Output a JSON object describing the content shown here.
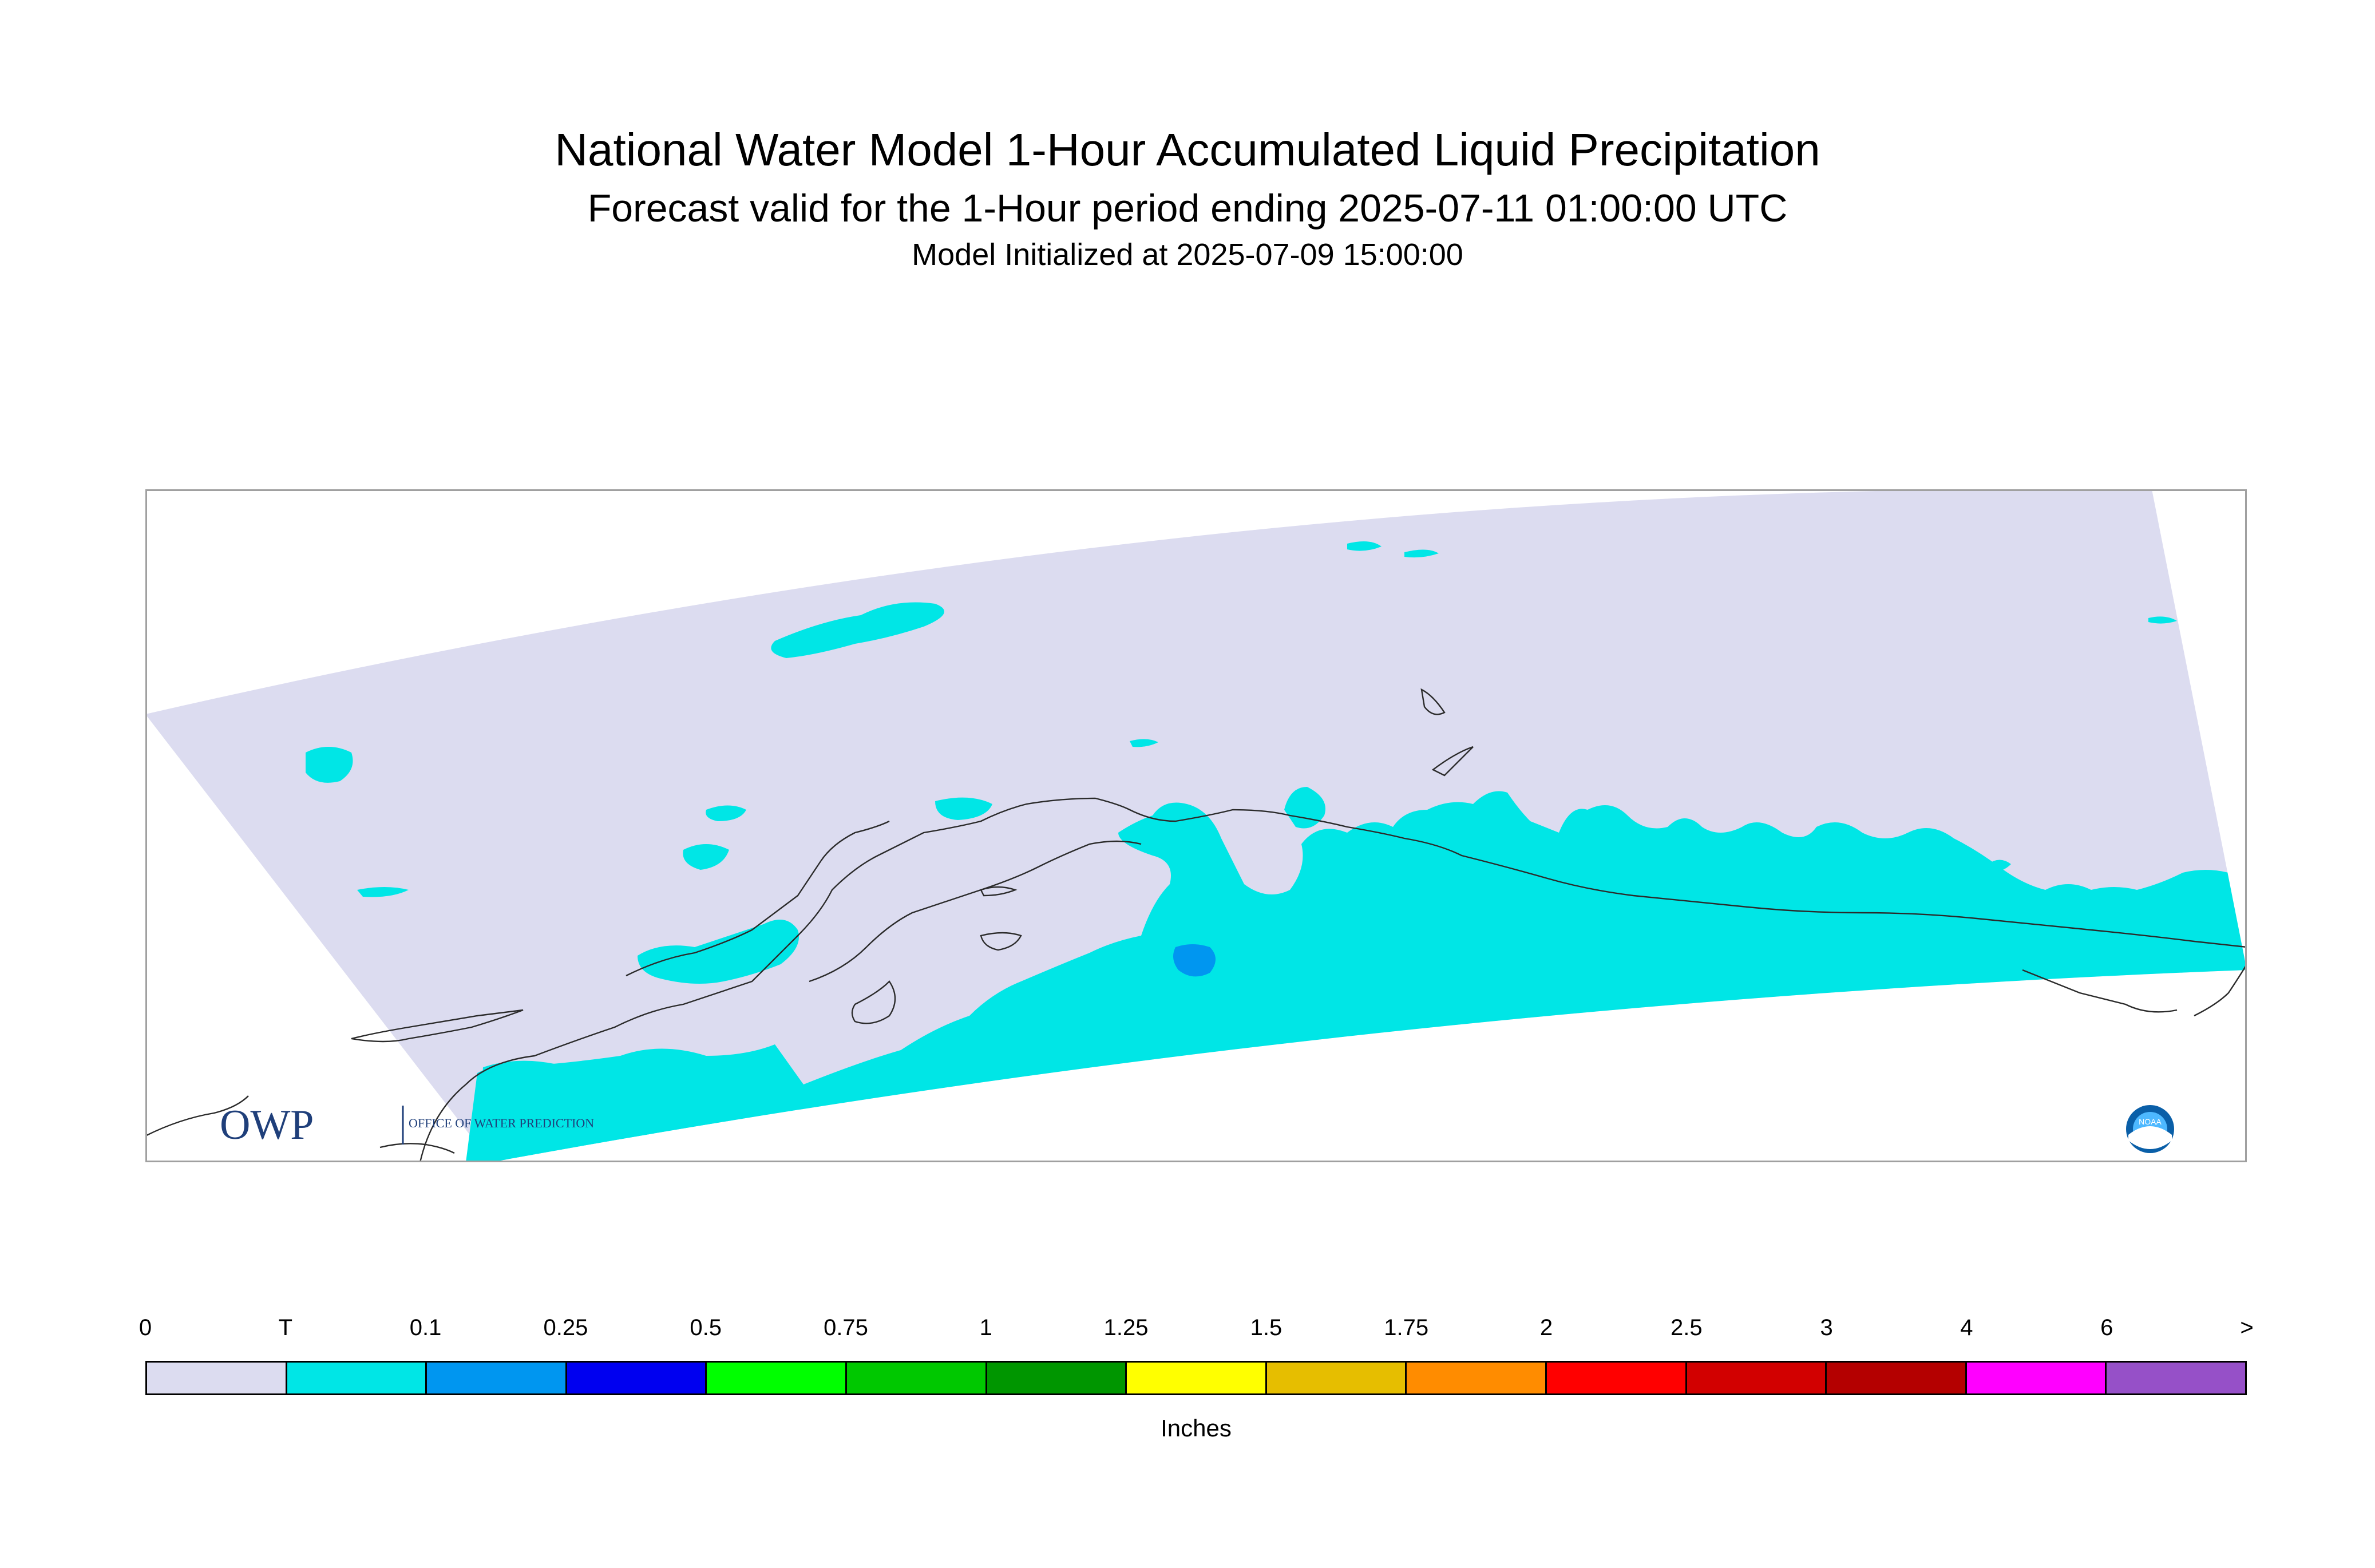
{
  "header": {
    "title": "National Water Model 1-Hour Accumulated Liquid Precipitation",
    "subtitle": "Forecast valid for the 1-Hour period ending 2025-07-11 01:00:00 UTC",
    "init": "Model Initialized at 2025-07-09 15:00:00"
  },
  "colors": {
    "domain": "#dcdcf0",
    "trace": "#00e6e6",
    "light": "#0096f0",
    "coast": "#2b2b2b",
    "frame": "#a0a0a0"
  },
  "map": {
    "logos": {
      "owp": "OWP",
      "owp_sub": "OFFICE OF WATER PREDICTION",
      "noaa": "NOAA"
    }
  },
  "legend": {
    "units": "Inches",
    "ticks": [
      "0",
      "T",
      "0.1",
      "0.25",
      "0.5",
      "0.75",
      "1",
      "1.25",
      "1.5",
      "1.75",
      "2",
      "2.5",
      "3",
      "4",
      "6",
      ">"
    ],
    "colors": [
      "#dcdcf0",
      "#00e6e6",
      "#0096f0",
      "#0000f0",
      "#00ff00",
      "#00c800",
      "#009600",
      "#ffff00",
      "#e6be00",
      "#ff8c00",
      "#ff0000",
      "#d20000",
      "#b40000",
      "#ff00ff",
      "#9650c8"
    ]
  }
}
